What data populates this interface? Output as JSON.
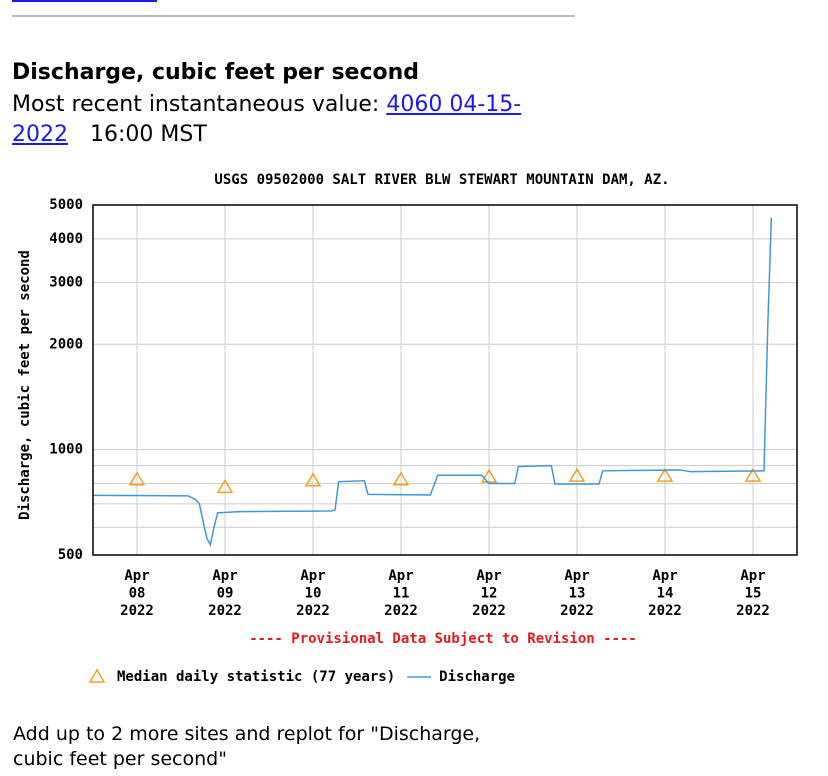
{
  "heading": "Discharge, cubic feet per second",
  "recent": {
    "prefix": "Most recent instantaneous value:",
    "link": "4060 04-15-2022",
    "suffix": "16:00 MST"
  },
  "chart_data": {
    "type": "line",
    "title": "USGS 09502000 SALT RIVER BLW STEWART MOUNTAIN DAM, AZ.",
    "y_label": "Discharge, cubic feet per second",
    "note": "---- Provisional Data Subject to Revision ----",
    "log_y": true,
    "grid": true,
    "xlim": [
      "2022-04-07 12:00",
      "2022-04-15 12:00"
    ],
    "xticks": [
      {
        "value": "2022-04-08 00:00",
        "label": "Apr\n08\n2022"
      },
      {
        "value": "2022-04-09 00:00",
        "label": "Apr\n09\n2022"
      },
      {
        "value": "2022-04-10 00:00",
        "label": "Apr\n10\n2022"
      },
      {
        "value": "2022-04-11 00:00",
        "label": "Apr\n11\n2022"
      },
      {
        "value": "2022-04-12 00:00",
        "label": "Apr\n12\n2022"
      },
      {
        "value": "2022-04-13 00:00",
        "label": "Apr\n13\n2022"
      },
      {
        "value": "2022-04-14 00:00",
        "label": "Apr\n14\n2022"
      },
      {
        "value": "2022-04-15 00:00",
        "label": "Apr\n15\n2022"
      }
    ],
    "ylim": [
      500,
      5000
    ],
    "yticks": [
      500,
      1000,
      2000,
      3000,
      4000,
      5000
    ],
    "minor_yticks": [
      600,
      700,
      800,
      900
    ],
    "series": [
      {
        "name": "Median daily statistic (77 years)",
        "color": "#f0a020",
        "marker": "triangle",
        "x": [
          "2022-04-08 00:00",
          "2022-04-09 00:00",
          "2022-04-10 00:00",
          "2022-04-11 00:00",
          "2022-04-12 00:00",
          "2022-04-13 00:00",
          "2022-04-14 00:00",
          "2022-04-15 00:00"
        ],
        "values": [
          820,
          780,
          815,
          820,
          835,
          840,
          840,
          840
        ]
      },
      {
        "name": "Discharge",
        "color": "#3a9ad9",
        "marker": "line",
        "x": [
          "2022-04-07 12:00",
          "2022-04-08 14:00",
          "2022-04-08 16:00",
          "2022-04-08 17:00",
          "2022-04-08 19:00",
          "2022-04-08 20:00",
          "2022-04-08 21:00",
          "2022-04-08 22:00",
          "2022-04-09 04:00",
          "2022-04-10 05:00",
          "2022-04-10 06:00",
          "2022-04-10 07:00",
          "2022-04-10 14:00",
          "2022-04-10 15:00",
          "2022-04-11 08:00",
          "2022-04-11 10:00",
          "2022-04-11 22:00",
          "2022-04-12 00:00",
          "2022-04-12 07:00",
          "2022-04-12 08:00",
          "2022-04-12 17:00",
          "2022-04-12 18:00",
          "2022-04-13 06:00",
          "2022-04-13 07:00",
          "2022-04-14 04:00",
          "2022-04-14 07:00",
          "2022-04-15 03:00",
          "2022-04-15 04:00",
          "2022-04-15 05:00"
        ],
        "values": [
          740,
          738,
          720,
          700,
          560,
          535,
          600,
          660,
          665,
          668,
          672,
          810,
          815,
          745,
          742,
          845,
          845,
          800,
          800,
          895,
          900,
          798,
          798,
          870,
          875,
          865,
          870,
          2200,
          4600
        ]
      }
    ]
  },
  "footer": "Add up to 2 more sites and replot for \"Discharge, cubic feet per second\""
}
